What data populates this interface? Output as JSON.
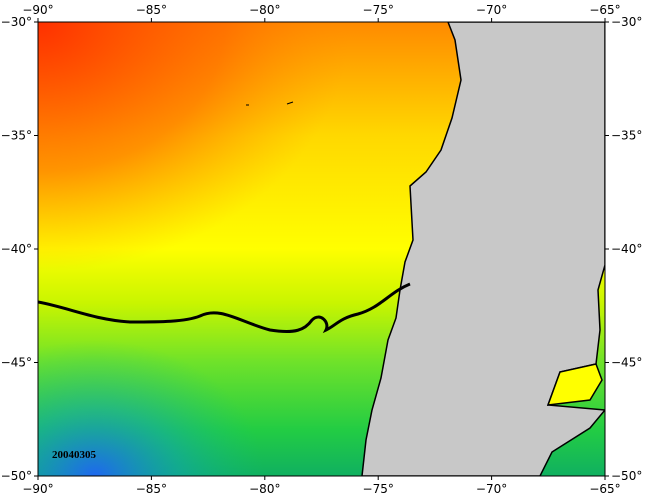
{
  "map": {
    "lon_ticks": [
      "−90°",
      "−85°",
      "−80°",
      "−75°",
      "−70°",
      "−65°"
    ],
    "lat_ticks": [
      "−30°",
      "−35°",
      "−40°",
      "−45°",
      "−50°"
    ],
    "date_label": "20040305"
  }
}
